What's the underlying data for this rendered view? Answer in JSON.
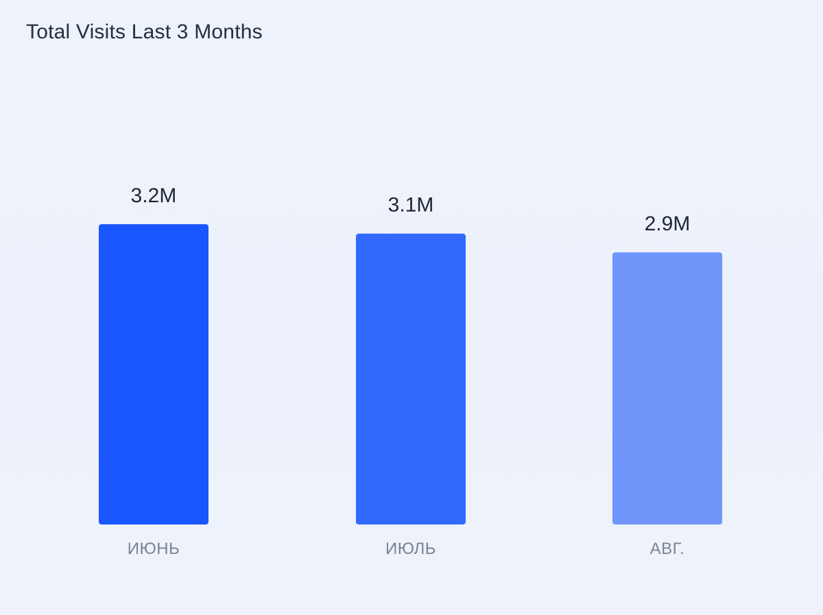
{
  "card": {
    "title": "Total Visits Last 3 Months"
  },
  "chart_data": {
    "type": "bar",
    "title": "Total Visits Last 3 Months",
    "categories": [
      "ИЮНЬ",
      "ИЮЛЬ",
      "АВГ."
    ],
    "values": [
      3.2,
      3.1,
      2.9
    ],
    "value_unit": "M",
    "data_labels": [
      "3.2M",
      "3.1M",
      "2.9M"
    ],
    "bar_colors": [
      "#1a56ff",
      "#3169ff",
      "#7096fb"
    ],
    "ylim": [
      0,
      3.2
    ],
    "grid": false,
    "legend": "none"
  }
}
